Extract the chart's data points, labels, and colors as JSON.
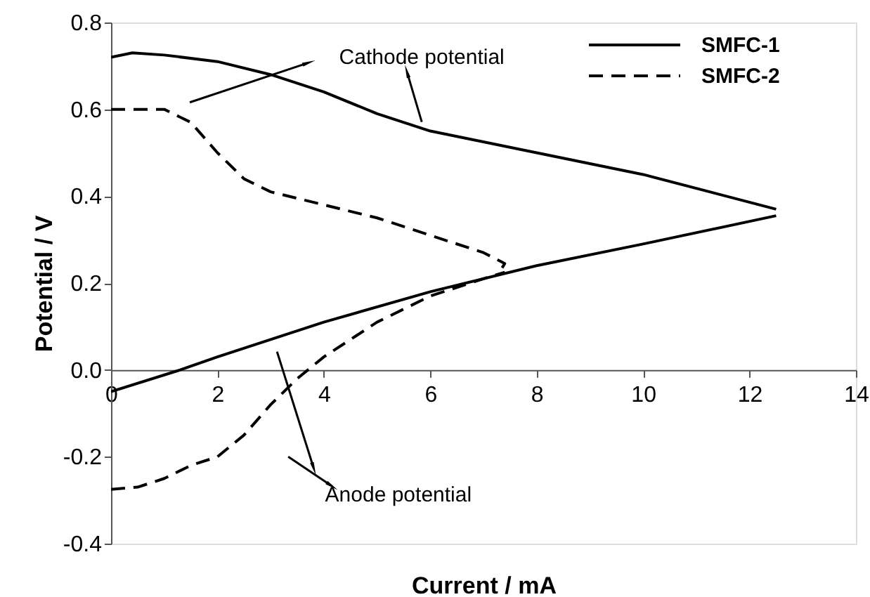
{
  "chart_data": {
    "type": "line",
    "xlabel": "Current / mA",
    "ylabel": "Potential / V",
    "xlim": [
      0,
      14
    ],
    "xticks": [
      0,
      2,
      4,
      6,
      8,
      10,
      12,
      14
    ],
    "ylim": [
      -0.4,
      0.8
    ],
    "yticks": [
      -0.4,
      -0.2,
      {
        "value": 0,
        "label": "0.0"
      },
      0.2,
      0.4,
      0.6,
      0.8
    ],
    "grid": false,
    "legend": "top right",
    "marker": "none",
    "annotations": [
      "Cathode potential",
      "Anode potential"
    ],
    "series": [
      {
        "name": "SMFC-1",
        "color": "#000000",
        "line_style": "solid",
        "x": [
          0,
          0.4,
          1,
          2,
          3,
          4,
          5,
          6,
          8,
          10,
          12.5
        ],
        "values": [
          0.72,
          0.73,
          0.725,
          0.71,
          0.68,
          0.64,
          0.59,
          0.55,
          0.5,
          0.45,
          0.37
        ]
      },
      {
        "color": "#000000",
        "line_style": "solid",
        "x": [
          0,
          1.3,
          2,
          3,
          4,
          6,
          8,
          10,
          12.5
        ],
        "values": [
          -0.05,
          0,
          0.03,
          0.07,
          0.11,
          0.18,
          0.24,
          0.29,
          0.355
        ]
      },
      {
        "name": "SMFC-2",
        "color": "#000000",
        "line_style": "dashed",
        "x": [
          0,
          1,
          1.5,
          2,
          2.5,
          3,
          4,
          5,
          6,
          7,
          7.4,
          7.35
        ],
        "values": [
          0.6,
          0.6,
          0.57,
          0.5,
          0.44,
          0.41,
          0.38,
          0.35,
          0.31,
          0.27,
          0.245,
          0.235
        ]
      },
      {
        "color": "#000000",
        "line_style": "dashed",
        "x": [
          0,
          0.5,
          1,
          1.5,
          2,
          2.5,
          3,
          3.5,
          4,
          5,
          6,
          7,
          7.4
        ],
        "values": [
          -0.275,
          -0.27,
          -0.25,
          -0.22,
          -0.2,
          -0.15,
          -0.08,
          -0.02,
          0.03,
          0.11,
          0.17,
          0.21,
          0.225
        ]
      }
    ]
  }
}
